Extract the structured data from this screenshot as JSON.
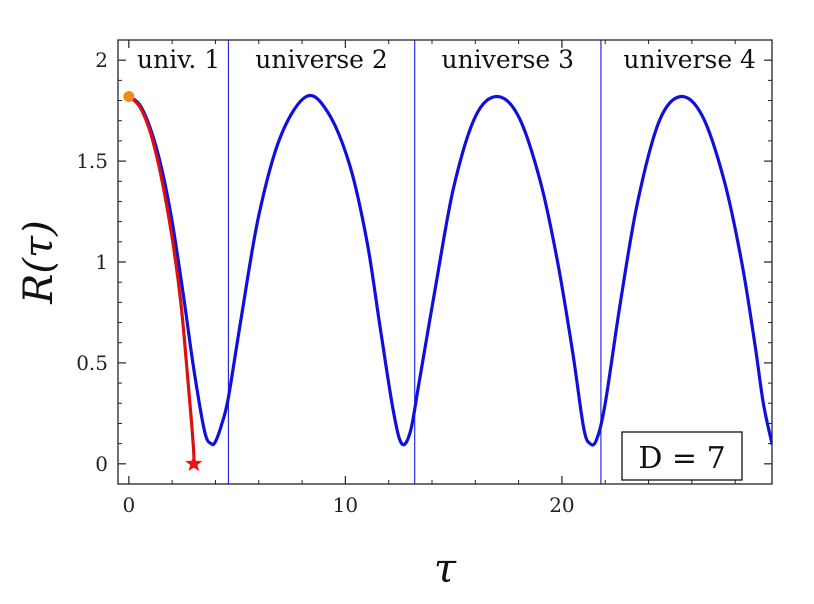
{
  "chart_data": {
    "type": "line",
    "xlabel": "τ",
    "ylabel": "R(τ)",
    "xlim": [
      -0.5,
      29.7
    ],
    "ylim": [
      -0.1,
      2.1
    ],
    "x_ticks": [
      0,
      10,
      20
    ],
    "x_tick_labels": [
      "0",
      "10",
      "20"
    ],
    "y_ticks": [
      0,
      0.5,
      1,
      1.5,
      2
    ],
    "y_tick_labels": [
      "0",
      "0.5",
      "1",
      "1.5",
      "2"
    ],
    "grid": false,
    "dividers_x": [
      4.6,
      13.2,
      21.8
    ],
    "region_labels": [
      {
        "text": "univ. 1",
        "x_center": 2.3
      },
      {
        "text": "universe 2",
        "x_center": 8.9
      },
      {
        "text": "universe 3",
        "x_center": 17.5
      },
      {
        "text": "universe 4",
        "x_center": 25.9
      }
    ],
    "annotation": "D = 7",
    "series": [
      {
        "color": "#1010dd",
        "x": [
          0,
          0.5,
          1,
          1.5,
          2,
          2.5,
          3,
          3.5,
          3.8,
          4.0,
          4.3,
          4.6,
          5.2,
          6,
          7,
          8.2,
          9.2,
          10.2,
          11,
          11.6,
          12.2,
          12.6,
          13.0,
          13.4,
          14.2,
          15,
          16,
          17.0,
          18,
          19,
          19.8,
          20.5,
          21,
          21.3,
          21.6,
          22.0,
          22.7,
          23.5,
          24.5,
          25.5,
          26.5,
          27.5,
          28.3,
          28.9,
          29.3,
          29.7
        ],
        "y": [
          1.82,
          1.78,
          1.66,
          1.47,
          1.2,
          0.85,
          0.47,
          0.16,
          0.1,
          0.11,
          0.2,
          0.33,
          0.73,
          1.23,
          1.62,
          1.82,
          1.74,
          1.48,
          1.1,
          0.68,
          0.27,
          0.1,
          0.16,
          0.4,
          0.9,
          1.37,
          1.72,
          1.82,
          1.72,
          1.4,
          1.0,
          0.55,
          0.18,
          0.1,
          0.12,
          0.3,
          0.8,
          1.3,
          1.7,
          1.82,
          1.72,
          1.4,
          1.0,
          0.6,
          0.3,
          0.1
        ]
      },
      {
        "color": "#dd1010",
        "x": [
          0,
          0.5,
          1,
          1.5,
          2,
          2.4,
          2.7,
          2.9,
          3.0,
          3.0
        ],
        "y": [
          1.82,
          1.77,
          1.64,
          1.42,
          1.12,
          0.8,
          0.45,
          0.2,
          0.05,
          0.0
        ]
      }
    ],
    "markers": [
      {
        "shape": "circle",
        "color": "#f08a1a",
        "x": 0,
        "y": 1.82
      },
      {
        "shape": "star",
        "color": "#e8141a",
        "x": 3.0,
        "y": 0.0
      }
    ]
  }
}
